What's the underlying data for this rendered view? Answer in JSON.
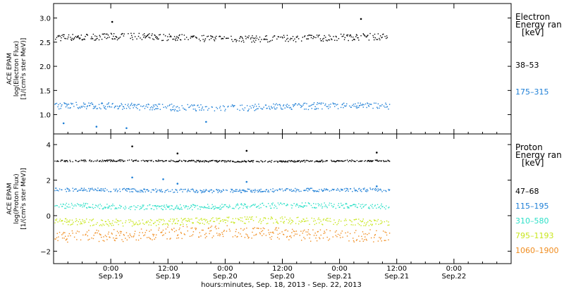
{
  "chart_data": [
    {
      "type": "scatter",
      "panel": "electron",
      "ylabel_lines": [
        "ACE EPAM",
        "log(Electron Flux)",
        "[1/(cm²s ster MeV)]"
      ],
      "ylim": [
        0.6,
        3.3
      ],
      "yticks": [
        1.0,
        1.5,
        2.0,
        2.5,
        3.0
      ],
      "ytick_labels": [
        "1.0",
        "1.5",
        "2.0",
        "2.5",
        "3.0"
      ],
      "legend_title": [
        "Electron",
        "Energy ran",
        "[keV]"
      ],
      "series": [
        {
          "name": "38–53",
          "color": "#000000",
          "level": 2.6,
          "spread": 0.07
        },
        {
          "name": "175–315",
          "color": "#1e7fd6",
          "level": 1.17,
          "spread": 0.07
        }
      ],
      "outliers": [
        {
          "x": 12.3,
          "y": 2.92,
          "series": 0
        },
        {
          "x": 64.5,
          "y": 2.98,
          "series": 0
        },
        {
          "x": 2.1,
          "y": 0.82,
          "series": 1
        },
        {
          "x": 9.0,
          "y": 0.75,
          "series": 1
        },
        {
          "x": 15.3,
          "y": 0.72,
          "series": 1
        },
        {
          "x": 32.0,
          "y": 0.85,
          "series": 1
        }
      ]
    },
    {
      "type": "scatter",
      "panel": "proton",
      "ylabel_lines": [
        "ACE EPAM",
        "log(Proton Flux)",
        "[1/(cm²s ster MeV)]"
      ],
      "ylim": [
        -2.7,
        4.6
      ],
      "yticks": [
        -2,
        0,
        2,
        4
      ],
      "ytick_labels": [
        "−2",
        "0",
        "2",
        "4"
      ],
      "legend_title": [
        "Proton",
        "Energy ran",
        "[keV]"
      ],
      "series": [
        {
          "name": "47–68",
          "color": "#000000",
          "level": 3.1,
          "spread": 0.05
        },
        {
          "name": "115–195",
          "color": "#1e7fd6",
          "level": 1.45,
          "spread": 0.1
        },
        {
          "name": "310–580",
          "color": "#2ee0c8",
          "level": 0.55,
          "spread": 0.15
        },
        {
          "name": "795–1193",
          "color": "#c8e61c",
          "level": -0.3,
          "spread": 0.2
        },
        {
          "name": "1060–1900",
          "color": "#f08c1e",
          "level": -1.0,
          "spread": 0.35
        }
      ],
      "spikes": [
        {
          "x": 16.5,
          "y": 3.9,
          "series": 0
        },
        {
          "x": 26.0,
          "y": 3.5,
          "series": 0
        },
        {
          "x": 40.5,
          "y": 3.65,
          "series": 0
        },
        {
          "x": 67.8,
          "y": 3.55,
          "series": 0
        },
        {
          "x": 16.5,
          "y": 2.15,
          "series": 1
        },
        {
          "x": 23.0,
          "y": 2.05,
          "series": 1
        },
        {
          "x": 26.0,
          "y": 1.8,
          "series": 1
        },
        {
          "x": 40.5,
          "y": 1.9,
          "series": 1
        },
        {
          "x": 67.8,
          "y": 1.65,
          "series": 1
        }
      ]
    }
  ],
  "x_axis": {
    "xlim": [
      0,
      96
    ],
    "ticks": [
      {
        "x": 12,
        "time": "0:00",
        "date": "Sep.19"
      },
      {
        "x": 24,
        "time": "12:00",
        "date": "Sep.19"
      },
      {
        "x": 36,
        "time": "0:00",
        "date": "Sep.20"
      },
      {
        "x": 48,
        "time": "12:00",
        "date": "Sep.20"
      },
      {
        "x": 60,
        "time": "0:00",
        "date": "Sep.21"
      },
      {
        "x": 72,
        "time": "12:00",
        "date": "Sep.21"
      },
      {
        "x": 84,
        "time": "0:00",
        "date": "Sep.22"
      }
    ],
    "data_end": 70.5,
    "xlabel": "hours:minutes, Sep. 18, 2013 - Sep. 22, 2013"
  }
}
